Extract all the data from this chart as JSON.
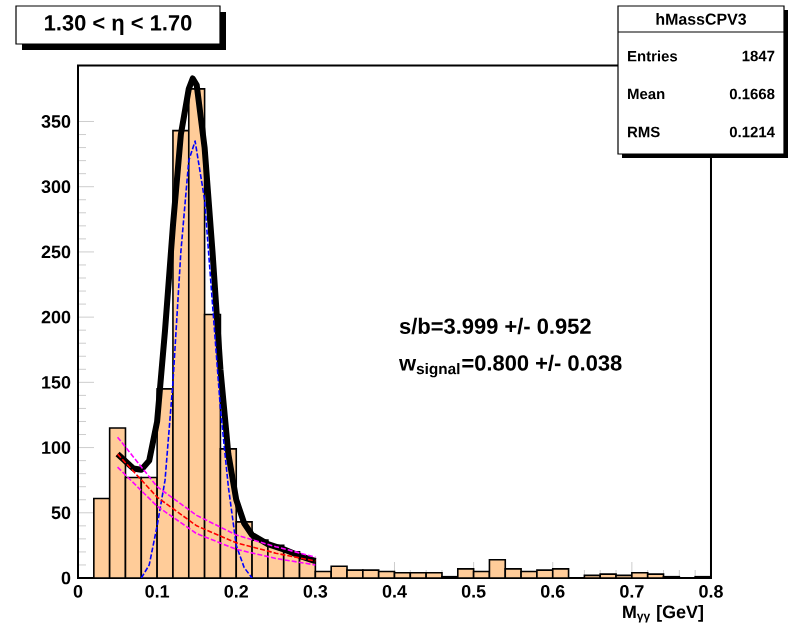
{
  "chart_data": {
    "type": "histogram",
    "title": "1.30 < η < 1.70",
    "xlabel": "M$_{γγ}$ [GeV]",
    "bins": [
      0,
      0.02,
      0.04,
      0.06,
      0.08,
      0.1,
      0.12,
      0.14,
      0.16,
      0.18,
      0.2,
      0.22,
      0.24,
      0.26,
      0.28,
      0.3,
      0.32,
      0.34,
      0.36,
      0.38,
      0.4,
      0.42,
      0.44,
      0.46,
      0.48,
      0.5,
      0.52,
      0.54,
      0.56,
      0.58,
      0.6,
      0.62,
      0.64,
      0.66,
      0.68,
      0.7,
      0.72,
      0.74,
      0.76,
      0.78,
      0.8
    ],
    "values": [
      0,
      61,
      115,
      77,
      77,
      145,
      343,
      375,
      202,
      99,
      43,
      29,
      25,
      20,
      15,
      5,
      9,
      6,
      6,
      5,
      4,
      4,
      4,
      1,
      7,
      5,
      14,
      7,
      5,
      6,
      7,
      0,
      2,
      3,
      2,
      4,
      3,
      1,
      0,
      1
    ],
    "color": "#ffcc99",
    "series": [
      {
        "type": "line",
        "color": "#0000ff",
        "line_style": "dashed",
        "x": [
          0.08,
          0.09,
          0.1,
          0.11,
          0.12,
          0.13,
          0.14,
          0.148,
          0.16,
          0.17,
          0.18,
          0.19,
          0.2,
          0.21,
          0.22
        ],
        "values": [
          0,
          10,
          40,
          75,
          150,
          250,
          320,
          335,
          290,
          210,
          130,
          70,
          25,
          8,
          0
        ]
      },
      {
        "type": "line",
        "color": "#ff0000",
        "line_style": "dashed",
        "x": [
          0.05,
          0.1,
          0.15,
          0.2,
          0.25,
          0.3
        ],
        "values": [
          95,
          62,
          40,
          27,
          19,
          13
        ]
      },
      {
        "type": "line",
        "color": "#ff00ff",
        "line_style": "dashed",
        "x": [
          0.05,
          0.1,
          0.15,
          0.2,
          0.25,
          0.3
        ],
        "values": [
          108,
          70,
          48,
          33,
          24,
          16
        ]
      },
      {
        "type": "line",
        "color": "#ff00ff",
        "line_style": "dashed",
        "x": [
          0.05,
          0.1,
          0.15,
          0.2,
          0.25,
          0.3
        ],
        "values": [
          85,
          55,
          34,
          22,
          15,
          10
        ]
      },
      {
        "type": "line",
        "color": "#000000",
        "line_style": "solid",
        "x": [
          0.05,
          0.07,
          0.08,
          0.09,
          0.1,
          0.11,
          0.12,
          0.13,
          0.14,
          0.145,
          0.15,
          0.16,
          0.17,
          0.18,
          0.19,
          0.2,
          0.21,
          0.22,
          0.24,
          0.26,
          0.28,
          0.3
        ],
        "values": [
          95,
          84,
          83,
          90,
          120,
          190,
          270,
          340,
          375,
          383,
          378,
          330,
          250,
          160,
          95,
          60,
          42,
          33,
          26,
          22,
          17,
          13
        ]
      }
    ],
    "xlim": [
      0,
      0.8
    ],
    "ylim": [
      0,
      393
    ],
    "xticks": [
      0,
      0.1,
      0.2,
      0.3,
      0.4,
      0.5,
      0.6,
      0.7,
      0.8
    ],
    "yticks": [
      0,
      50,
      100,
      150,
      200,
      250,
      300,
      350
    ],
    "annotations": [
      "hMassCPV3",
      "Entries",
      "1847",
      "Mean",
      "0.1668",
      "RMS",
      "0.1214",
      "s/b=3.999 +/- 0.952",
      "w$_{signal}$=0.800 +/- 0.038"
    ]
  }
}
